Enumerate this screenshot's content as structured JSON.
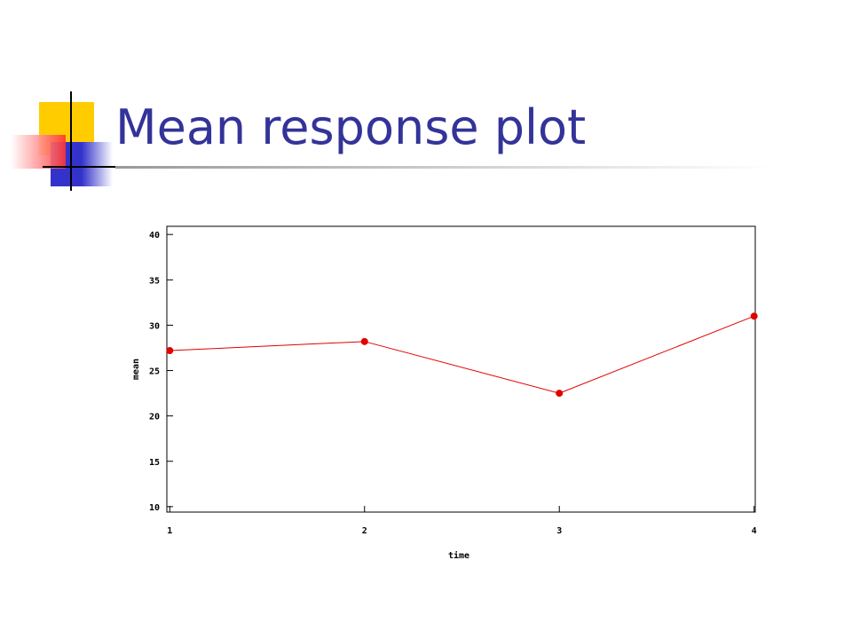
{
  "chart_data": {
    "type": "line",
    "title": "Mean response plot",
    "x_label": "time",
    "y_label": "mean",
    "x": [
      1,
      2,
      3,
      4
    ],
    "series": [
      {
        "name": "mean",
        "color": "#e00000",
        "values": [
          27.2,
          28.2,
          22.5,
          31.0
        ]
      }
    ],
    "xlim": [
      0.985,
      4.006
    ],
    "xticks": [
      1,
      2,
      3,
      4
    ],
    "ylim": [
      9.4,
      40.9
    ],
    "yticks": [
      10,
      15,
      20,
      25,
      30,
      35,
      40
    ]
  }
}
